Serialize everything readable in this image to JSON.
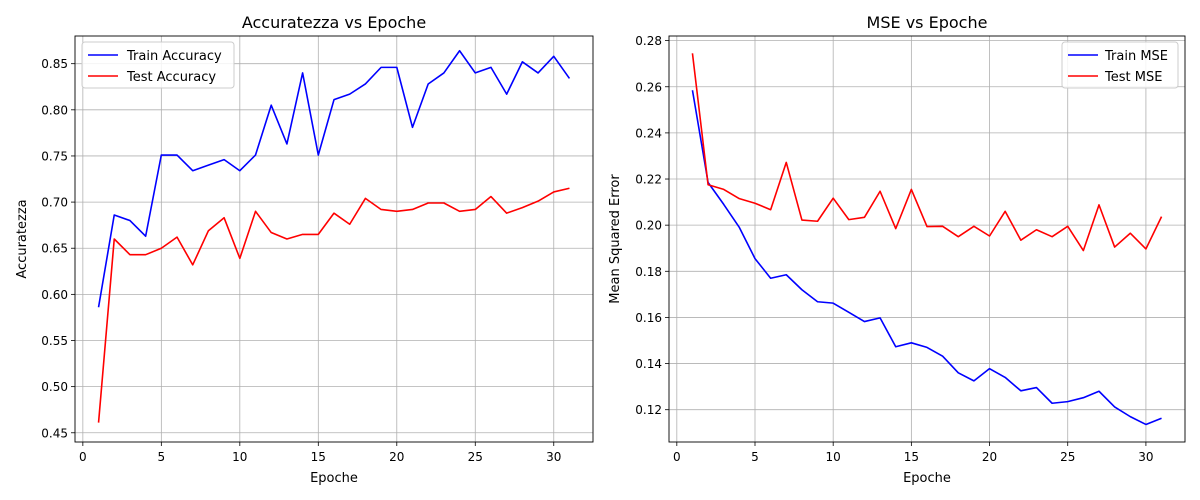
{
  "chart_data": [
    {
      "type": "line",
      "title": "Accuratezza vs Epoche",
      "xlabel": "Epoche",
      "ylabel": "Accuratezza",
      "xlim": [
        -0.5,
        32.5
      ],
      "ylim": [
        0.44,
        0.88
      ],
      "xticks": [
        0,
        5,
        10,
        15,
        20,
        25,
        30
      ],
      "yticks": [
        0.45,
        0.5,
        0.55,
        0.6,
        0.65,
        0.7,
        0.75,
        0.8,
        0.85
      ],
      "ytick_decimals": 2,
      "grid": true,
      "legend": "top-left",
      "x": [
        1,
        2,
        3,
        4,
        5,
        6,
        7,
        8,
        9,
        10,
        11,
        12,
        13,
        14,
        15,
        16,
        17,
        18,
        19,
        20,
        21,
        22,
        23,
        24,
        25,
        26,
        27,
        28,
        29,
        30,
        31
      ],
      "series": [
        {
          "name": "Train Accuracy",
          "color": "#0000ff",
          "values": [
            0.586,
            0.686,
            0.68,
            0.663,
            0.751,
            0.751,
            0.734,
            0.74,
            0.746,
            0.734,
            0.751,
            0.805,
            0.763,
            0.84,
            0.751,
            0.811,
            0.817,
            0.828,
            0.846,
            0.846,
            0.781,
            0.828,
            0.84,
            0.864,
            0.84,
            0.846,
            0.817,
            0.852,
            0.84,
            0.858,
            0.834
          ]
        },
        {
          "name": "Test Accuracy",
          "color": "#ff0000",
          "values": [
            0.461,
            0.66,
            0.643,
            0.643,
            0.65,
            0.662,
            0.632,
            0.669,
            0.683,
            0.639,
            0.69,
            0.667,
            0.66,
            0.665,
            0.665,
            0.688,
            0.676,
            0.704,
            0.692,
            0.69,
            0.692,
            0.699,
            0.699,
            0.69,
            0.692,
            0.706,
            0.688,
            0.694,
            0.701,
            0.711,
            0.715
          ]
        }
      ]
    },
    {
      "type": "line",
      "title": "MSE vs Epoche",
      "xlabel": "Epoche",
      "ylabel": "Mean Squared Error",
      "xlim": [
        -0.5,
        32.5
      ],
      "ylim": [
        0.106,
        0.282
      ],
      "xticks": [
        0,
        5,
        10,
        15,
        20,
        25,
        30
      ],
      "yticks": [
        0.12,
        0.14,
        0.16,
        0.18,
        0.2,
        0.22,
        0.24,
        0.26,
        0.28
      ],
      "ytick_decimals": 2,
      "grid": true,
      "legend": "top-right",
      "x": [
        1,
        2,
        3,
        4,
        5,
        6,
        7,
        8,
        9,
        10,
        11,
        12,
        13,
        14,
        15,
        16,
        17,
        18,
        19,
        20,
        21,
        22,
        23,
        24,
        25,
        26,
        27,
        28,
        29,
        30,
        31
      ],
      "series": [
        {
          "name": "Train MSE",
          "color": "#0000ff",
          "values": [
            0.2585,
            0.2185,
            0.209,
            0.199,
            0.1855,
            0.177,
            0.1785,
            0.172,
            0.1668,
            0.1662,
            0.1622,
            0.1582,
            0.1598,
            0.1473,
            0.149,
            0.147,
            0.1432,
            0.136,
            0.1325,
            0.1378,
            0.134,
            0.1282,
            0.1296,
            0.1228,
            0.1235,
            0.1252,
            0.128,
            0.1212,
            0.117,
            0.1136,
            0.1163
          ]
        },
        {
          "name": "Test MSE",
          "color": "#ff0000",
          "values": [
            0.2745,
            0.2175,
            0.2155,
            0.2115,
            0.2095,
            0.2067,
            0.2272,
            0.2022,
            0.2017,
            0.2117,
            0.2024,
            0.2034,
            0.2147,
            0.1985,
            0.2155,
            0.1994,
            0.1995,
            0.195,
            0.1995,
            0.1953,
            0.206,
            0.1935,
            0.198,
            0.195,
            0.1995,
            0.189,
            0.2088,
            0.1905,
            0.1965,
            0.1897,
            0.2037
          ]
        }
      ]
    }
  ]
}
